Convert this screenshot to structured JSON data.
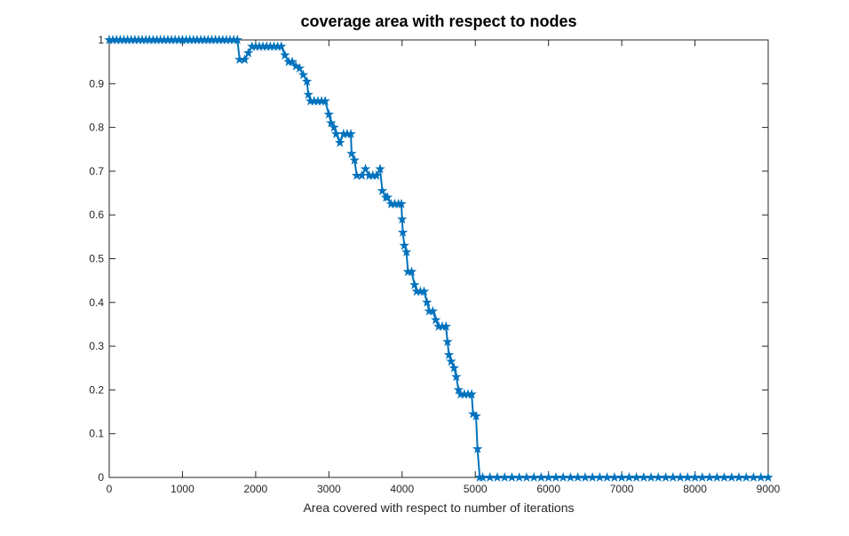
{
  "chart_data": {
    "type": "line",
    "title": "coverage area with respect to nodes",
    "x_label": "Area covered with respect to number of iterations",
    "x": [
      0,
      50,
      100,
      150,
      200,
      250,
      300,
      350,
      400,
      450,
      500,
      550,
      600,
      650,
      700,
      750,
      800,
      850,
      900,
      950,
      1000,
      1050,
      1100,
      1150,
      1200,
      1250,
      1300,
      1350,
      1400,
      1450,
      1500,
      1550,
      1600,
      1650,
      1700,
      1750,
      1780,
      1850,
      1900,
      1950,
      2000,
      2050,
      2100,
      2150,
      2200,
      2250,
      2300,
      2350,
      2400,
      2450,
      2500,
      2550,
      2600,
      2650,
      2700,
      2720,
      2750,
      2800,
      2850,
      2900,
      2950,
      3000,
      3030,
      3070,
      3100,
      3150,
      3200,
      3250,
      3300,
      3310,
      3350,
      3380,
      3450,
      3500,
      3550,
      3600,
      3650,
      3700,
      3730,
      3780,
      3800,
      3850,
      3900,
      3950,
      3990,
      4000,
      4010,
      4030,
      4060,
      4080,
      4130,
      4170,
      4200,
      4250,
      4300,
      4340,
      4370,
      4420,
      4460,
      4500,
      4550,
      4600,
      4620,
      4640,
      4670,
      4710,
      4740,
      4770,
      4800,
      4850,
      4900,
      4950,
      4970,
      5010,
      5030,
      5060,
      5100,
      5200,
      5300,
      5400,
      5500,
      5600,
      5700,
      5800,
      5900,
      6000,
      6100,
      6200,
      6300,
      6400,
      6500,
      6600,
      6700,
      6800,
      6900,
      7000,
      7100,
      7200,
      7300,
      7400,
      7500,
      7600,
      7700,
      7800,
      7900,
      8000,
      8100,
      8200,
      8300,
      8400,
      8500,
      8600,
      8700,
      8800,
      8900,
      9000
    ],
    "series": [
      {
        "color": "#0072bd",
        "marker": "star",
        "values": [
          1,
          1,
          1,
          1,
          1,
          1,
          1,
          1,
          1,
          1,
          1,
          1,
          1,
          1,
          1,
          1,
          1,
          1,
          1,
          1,
          1,
          1,
          1,
          1,
          1,
          1,
          1,
          1,
          1,
          1,
          1,
          1,
          1,
          1,
          1,
          1,
          0.955,
          0.955,
          0.97,
          0.985,
          0.985,
          0.985,
          0.985,
          0.985,
          0.985,
          0.985,
          0.985,
          0.985,
          0.965,
          0.95,
          0.95,
          0.94,
          0.935,
          0.92,
          0.905,
          0.875,
          0.86,
          0.86,
          0.86,
          0.86,
          0.86,
          0.83,
          0.81,
          0.8,
          0.785,
          0.765,
          0.785,
          0.785,
          0.785,
          0.74,
          0.725,
          0.69,
          0.69,
          0.705,
          0.69,
          0.69,
          0.69,
          0.705,
          0.655,
          0.64,
          0.64,
          0.625,
          0.625,
          0.625,
          0.625,
          0.59,
          0.56,
          0.53,
          0.515,
          0.47,
          0.47,
          0.44,
          0.425,
          0.425,
          0.425,
          0.4,
          0.38,
          0.38,
          0.36,
          0.345,
          0.345,
          0.345,
          0.31,
          0.28,
          0.265,
          0.25,
          0.23,
          0.2,
          0.19,
          0.19,
          0.19,
          0.19,
          0.145,
          0.14,
          0.065,
          0,
          0,
          0,
          0,
          0,
          0,
          0,
          0,
          0,
          0,
          0,
          0,
          0,
          0,
          0,
          0,
          0,
          0,
          0,
          0,
          0,
          0,
          0,
          0,
          0,
          0,
          0,
          0,
          0,
          0,
          0,
          0,
          0,
          0,
          0,
          0,
          0,
          0,
          0,
          0,
          0
        ]
      }
    ],
    "xlim": [
      0,
      9000
    ],
    "xticks": [
      0,
      1000,
      2000,
      3000,
      4000,
      5000,
      6000,
      7000,
      8000,
      9000
    ],
    "ylim": [
      0,
      1
    ],
    "yticks": [
      0,
      0.1,
      0.2,
      0.3,
      0.4,
      0.5,
      0.6,
      0.7,
      0.8,
      0.9,
      1
    ],
    "grid": false
  }
}
